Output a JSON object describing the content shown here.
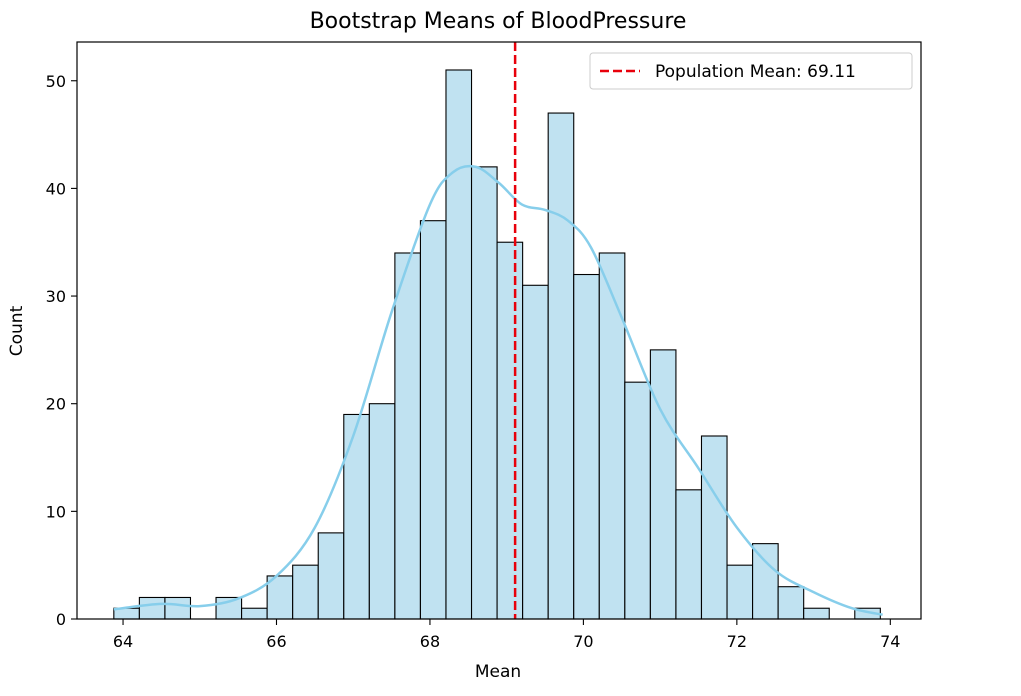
{
  "chart_data": {
    "type": "bar",
    "title": "Bootstrap Means of BloodPressure",
    "xlabel": "Mean",
    "ylabel": "Count",
    "xlim": [
      63.4,
      74.4
    ],
    "ylim": [
      0,
      53.6
    ],
    "xticks": [
      64,
      66,
      68,
      70,
      72,
      74
    ],
    "yticks": [
      0,
      10,
      20,
      30,
      40,
      50
    ],
    "bin_start": 63.88,
    "bin_width": 0.333,
    "counts": [
      1,
      2,
      2,
      0,
      2,
      1,
      4,
      5,
      8,
      19,
      20,
      34,
      37,
      51,
      42,
      35,
      31,
      47,
      32,
      34,
      22,
      25,
      12,
      17,
      5,
      7,
      3,
      1,
      0,
      1
    ],
    "bar_color": "#c0e2f1",
    "bar_edge_color": "#000000",
    "kde": {
      "color": "#87ceeb",
      "x": [
        63.88,
        64.5,
        65.0,
        65.5,
        66.0,
        66.5,
        67.0,
        67.5,
        68.0,
        68.3,
        68.6,
        68.9,
        69.2,
        69.5,
        69.8,
        70.1,
        70.5,
        71.0,
        71.5,
        72.0,
        72.5,
        73.0,
        73.5,
        73.9
      ],
      "y": [
        0.9,
        1.4,
        1.2,
        1.9,
        4.0,
        8.5,
        17.0,
        28.5,
        38.5,
        41.5,
        42.0,
        40.5,
        38.5,
        38.0,
        37.0,
        34.5,
        28.0,
        19.5,
        14.0,
        8.5,
        4.5,
        2.5,
        1.0,
        0.4
      ]
    },
    "reference_line": {
      "x": 69.11,
      "color": "#e8000b",
      "style": "dashed"
    },
    "legend": {
      "position": "top-right",
      "entries": [
        "Population Mean: 69.11"
      ]
    },
    "grid": false
  }
}
